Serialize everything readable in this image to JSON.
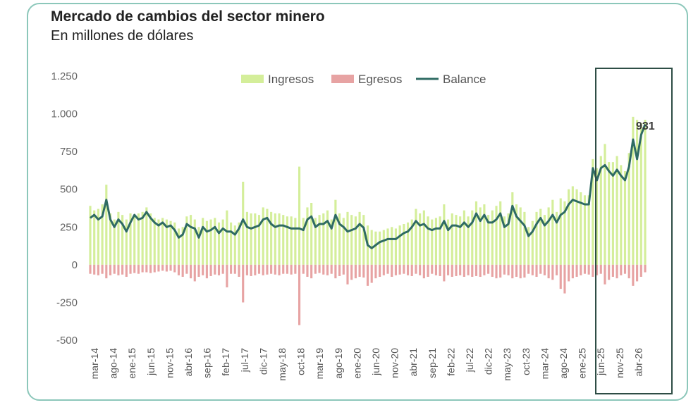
{
  "chart_data": {
    "type": "bar",
    "title": "Mercado de cambios del sector minero",
    "subtitle": "En millones de dólares",
    "xlabel": "",
    "ylabel": "",
    "ylim": [
      -500,
      1250
    ],
    "yticks": [
      1250,
      1000,
      750,
      500,
      250,
      0,
      -250,
      -500
    ],
    "ytick_labels": [
      "1.250",
      "1.000",
      "750",
      "500",
      "250",
      "0",
      "-250",
      "-500"
    ],
    "xtick_labels": [
      "mar-14",
      "ago-14",
      "ene-15",
      "jun-15",
      "nov-15",
      "abr-16",
      "sep-16",
      "feb-17",
      "jul-17",
      "dic-17",
      "may-18",
      "oct-18",
      "mar-19",
      "ago-19",
      "ene-20",
      "jun-20",
      "nov-20",
      "abr-21",
      "sep-21",
      "feb-22",
      "jul-22",
      "dic-22",
      "may-23",
      "oct-23",
      "mar-24",
      "ago-24",
      "ene-25",
      "jun-25",
      "nov-25",
      "abr-26"
    ],
    "legend_position": "top-center",
    "grid": false,
    "series": [
      {
        "name": "Ingresos",
        "type": "bar",
        "color": "#d4ee9a",
        "values": [
          390,
          360,
          370,
          400,
          530,
          340,
          300,
          350,
          330,
          300,
          340,
          330,
          340,
          350,
          380,
          340,
          310,
          300,
          310,
          300,
          290,
          280,
          240,
          250,
          320,
          330,
          300,
          250,
          310,
          290,
          300,
          310,
          280,
          300,
          360,
          280,
          260,
          280,
          550,
          350,
          340,
          340,
          330,
          380,
          370,
          350,
          340,
          340,
          330,
          320,
          320,
          310,
          650,
          310,
          380,
          410,
          310,
          330,
          340,
          360,
          300,
          430,
          340,
          310,
          350,
          330,
          320,
          350,
          330,
          260,
          230,
          220,
          220,
          230,
          240,
          250,
          240,
          260,
          270,
          280,
          300,
          370,
          340,
          360,
          320,
          300,
          310,
          320,
          400,
          300,
          340,
          330,
          320,
          360,
          320,
          360,
          420,
          380,
          400,
          330,
          360,
          390,
          420,
          320,
          340,
          480,
          400,
          380,
          350,
          250,
          290,
          350,
          370,
          330,
          380,
          430,
          350,
          440,
          420,
          500,
          520,
          500,
          480,
          460,
          460,
          700,
          640,
          720,
          800,
          680,
          680,
          720,
          660,
          620,
          740,
          980,
          960,
          940,
          960
        ]
      },
      {
        "name": "Egresos",
        "type": "bar",
        "color": "#e7a3a3",
        "values": [
          -60,
          -65,
          -70,
          -60,
          -90,
          -70,
          -60,
          -70,
          -65,
          -80,
          -60,
          -55,
          -60,
          -50,
          -50,
          -55,
          -50,
          -45,
          -40,
          -45,
          -40,
          -50,
          -70,
          -80,
          -60,
          -90,
          -110,
          -80,
          -70,
          -90,
          -75,
          -65,
          -70,
          -60,
          -150,
          -60,
          -60,
          -80,
          -250,
          -70,
          -75,
          -70,
          -60,
          -70,
          -65,
          -60,
          -65,
          -70,
          -60,
          -60,
          -65,
          -60,
          -400,
          -60,
          -80,
          -90,
          -60,
          -55,
          -65,
          -70,
          -60,
          -90,
          -75,
          -65,
          -130,
          -100,
          -90,
          -80,
          -85,
          -140,
          -120,
          -90,
          -80,
          -70,
          -60,
          -80,
          -70,
          -65,
          -60,
          -70,
          -75,
          -60,
          -70,
          -90,
          -80,
          -60,
          -70,
          -75,
          -110,
          -70,
          -80,
          -75,
          -70,
          -80,
          -70,
          -80,
          -75,
          -80,
          -70,
          -60,
          -80,
          -90,
          -85,
          -65,
          -70,
          -90,
          -80,
          -90,
          -85,
          -60,
          -70,
          -80,
          -60,
          -70,
          -90,
          -100,
          -70,
          -160,
          -190,
          -110,
          -90,
          -80,
          -70,
          -60,
          -65,
          -80,
          -70,
          -60,
          -130,
          -100,
          -80,
          -90,
          -70,
          -60,
          -90,
          -140,
          -110,
          -80,
          -50
        ]
      },
      {
        "name": "Balance",
        "type": "line",
        "color": "#2f6b63",
        "values": [
          310,
          330,
          300,
          320,
          430,
          300,
          250,
          300,
          270,
          220,
          280,
          330,
          300,
          310,
          350,
          310,
          280,
          260,
          280,
          250,
          260,
          230,
          180,
          200,
          270,
          250,
          240,
          180,
          250,
          220,
          230,
          250,
          210,
          240,
          220,
          220,
          200,
          240,
          300,
          250,
          240,
          250,
          260,
          300,
          310,
          270,
          250,
          260,
          260,
          250,
          240,
          240,
          240,
          230,
          300,
          320,
          250,
          270,
          270,
          290,
          240,
          330,
          270,
          250,
          220,
          230,
          240,
          270,
          245,
          130,
          110,
          130,
          150,
          160,
          170,
          170,
          170,
          190,
          210,
          220,
          250,
          290,
          260,
          270,
          240,
          230,
          240,
          240,
          290,
          230,
          260,
          260,
          250,
          280,
          250,
          280,
          340,
          290,
          330,
          280,
          280,
          300,
          340,
          250,
          270,
          390,
          320,
          290,
          260,
          190,
          220,
          270,
          310,
          260,
          290,
          330,
          280,
          330,
          350,
          400,
          430,
          420,
          410,
          400,
          400,
          640,
          560,
          640,
          660,
          620,
          590,
          630,
          590,
          560,
          650,
          830,
          700,
          860,
          931
        ]
      }
    ],
    "annotations": [
      {
        "text": "931"
      }
    ]
  }
}
